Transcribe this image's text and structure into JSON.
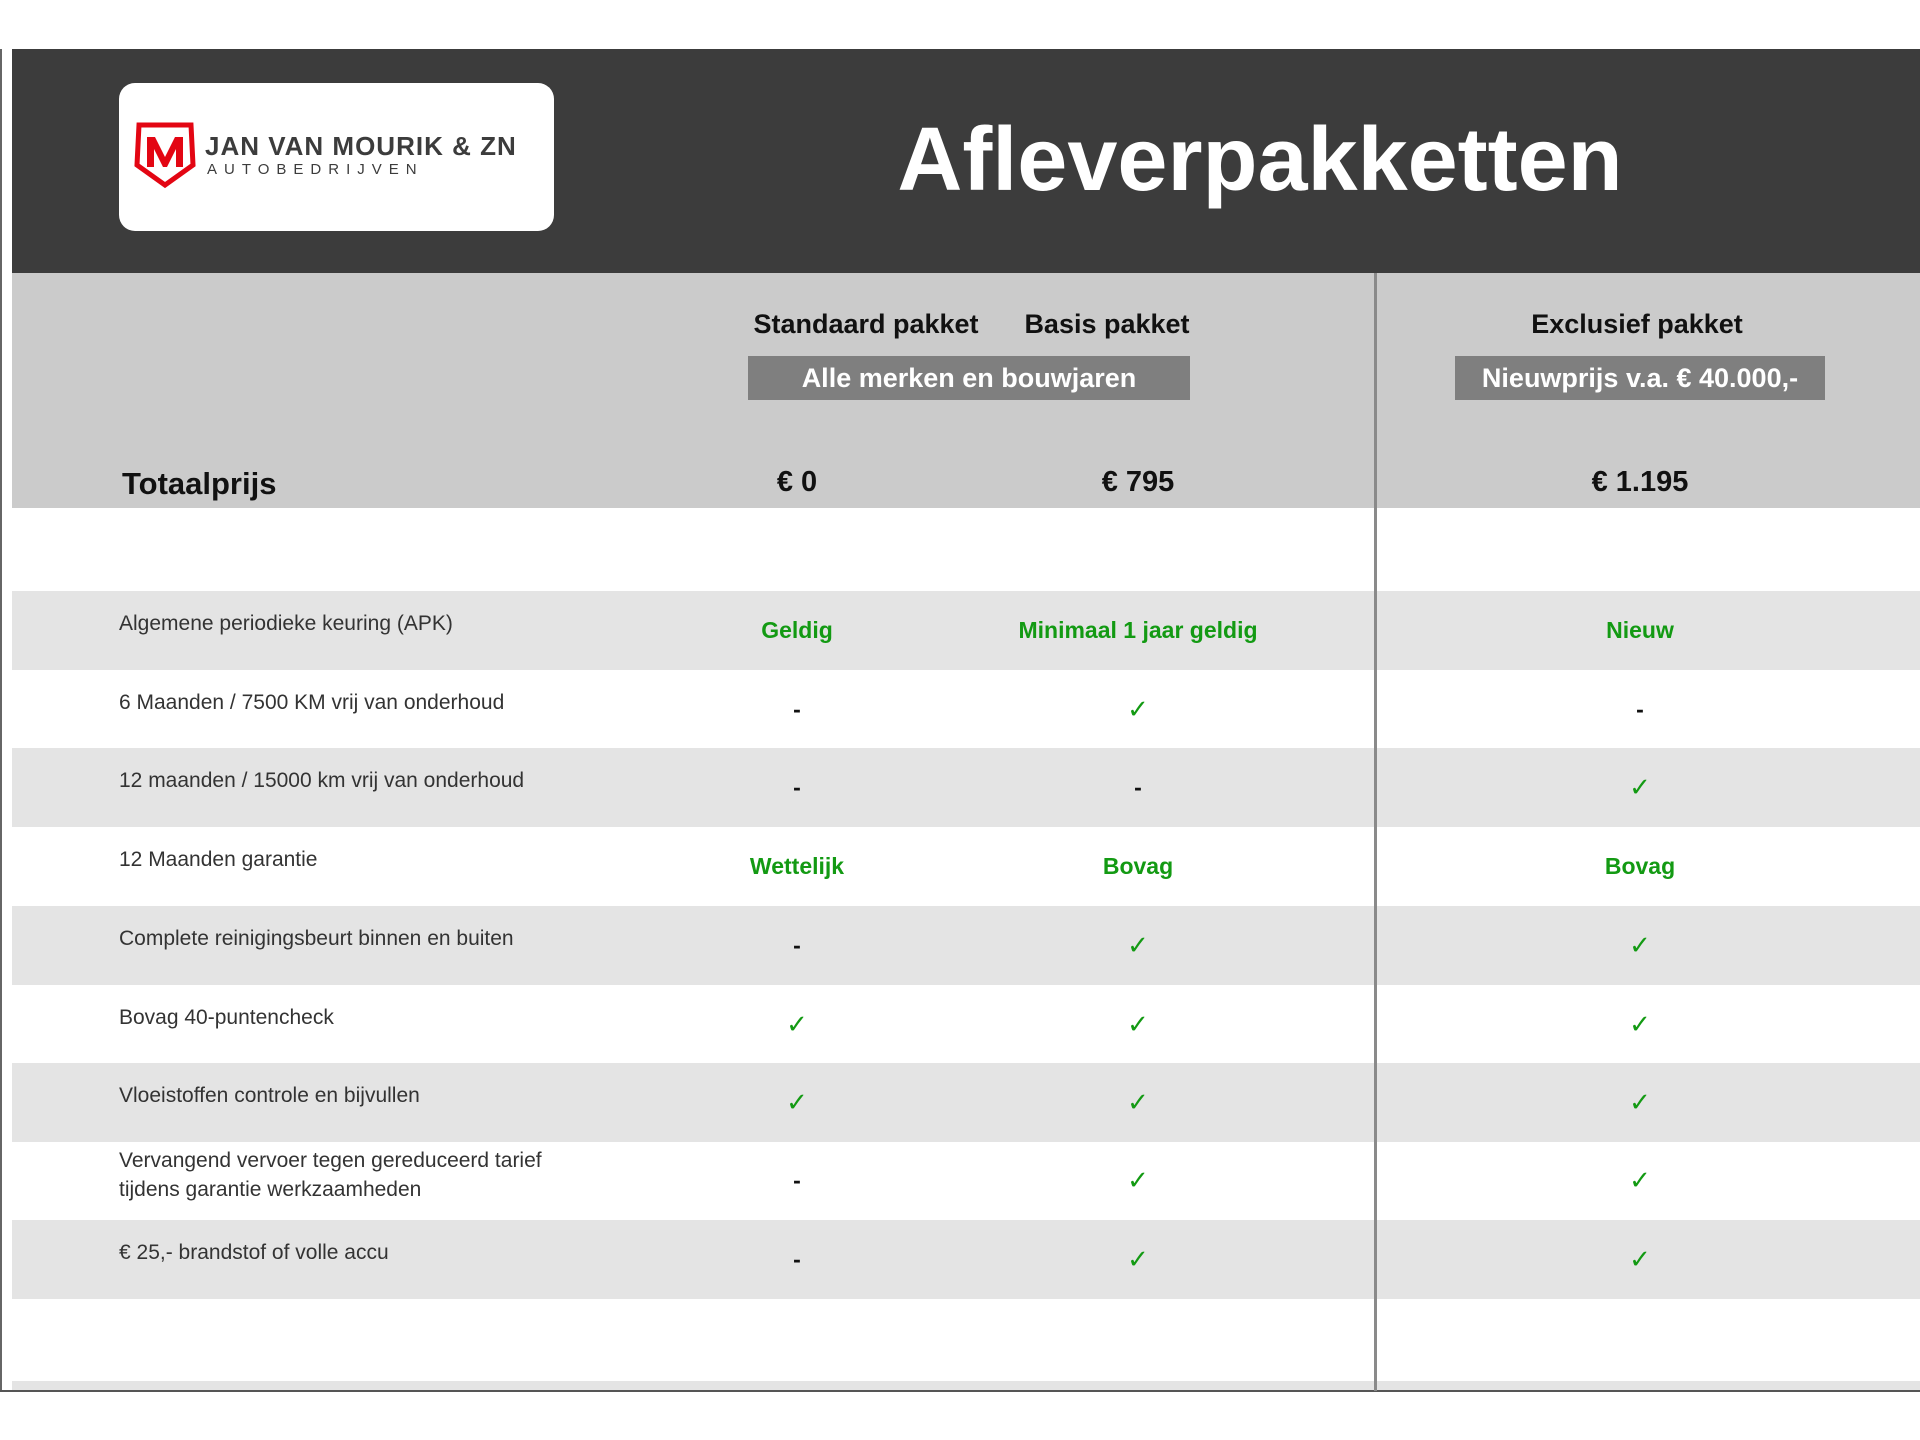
{
  "logo": {
    "name": "JAN VAN MOURIK & ZN",
    "subtitle": "AUTOBEDRIJVEN",
    "brand_color": "#e30613"
  },
  "title": "Afleverpakketten",
  "packages": [
    {
      "name": "Standaard pakket",
      "price": "€ 0"
    },
    {
      "name": "Basis pakket",
      "price": "€ 795"
    },
    {
      "name": "Exclusief pakket",
      "price": "€ 1.195"
    }
  ],
  "group_notes": {
    "standard_basis": "Alle merken en bouwjaren",
    "exclusive": "Nieuwprijs v.a. € 40.000,-"
  },
  "total_label": "Totaalprijs",
  "colors": {
    "header": "#3c3c3c",
    "accent_green": "#139a13",
    "row_shade": "#e4e4e4"
  },
  "rows": [
    {
      "label": "Algemene periodieke keuring (APK)",
      "values": [
        {
          "text": "Geldig",
          "type": "word"
        },
        {
          "text": "Minimaal 1 jaar geldig",
          "type": "word"
        },
        {
          "text": "Nieuw",
          "type": "word"
        }
      ]
    },
    {
      "label": "6 Maanden / 7500 KM vrij van onderhoud",
      "values": [
        {
          "text": "-",
          "type": "dash"
        },
        {
          "text": "✓",
          "type": "check"
        },
        {
          "text": "-",
          "type": "dash"
        }
      ]
    },
    {
      "label": "12 maanden / 15000 km vrij van onderhoud",
      "values": [
        {
          "text": "-",
          "type": "dash"
        },
        {
          "text": "-",
          "type": "dash"
        },
        {
          "text": "✓",
          "type": "check"
        }
      ]
    },
    {
      "label": "12 Maanden  garantie",
      "values": [
        {
          "text": "Wettelijk",
          "type": "word"
        },
        {
          "text": "Bovag",
          "type": "word"
        },
        {
          "text": "Bovag",
          "type": "word"
        }
      ]
    },
    {
      "label": "Complete reinigingsbeurt binnen en buiten",
      "values": [
        {
          "text": "-",
          "type": "dash"
        },
        {
          "text": "✓",
          "type": "check"
        },
        {
          "text": "✓",
          "type": "check"
        }
      ]
    },
    {
      "label": "Bovag 40-puntencheck",
      "values": [
        {
          "text": "✓",
          "type": "check"
        },
        {
          "text": "✓",
          "type": "check"
        },
        {
          "text": "✓",
          "type": "check"
        }
      ]
    },
    {
      "label": "Vloeistoffen controle en bijvullen",
      "values": [
        {
          "text": "✓",
          "type": "check"
        },
        {
          "text": "✓",
          "type": "check"
        },
        {
          "text": "✓",
          "type": "check"
        }
      ]
    },
    {
      "label": "Vervangend vervoer tegen gereduceerd tarief tijdens garantie werkzaamheden",
      "values": [
        {
          "text": "-",
          "type": "dash"
        },
        {
          "text": "✓",
          "type": "check"
        },
        {
          "text": "✓",
          "type": "check"
        }
      ]
    },
    {
      "label": "€ 25,- brandstof of  volle accu",
      "values": [
        {
          "text": "-",
          "type": "dash"
        },
        {
          "text": "✓",
          "type": "check"
        },
        {
          "text": "✓",
          "type": "check"
        }
      ]
    }
  ]
}
